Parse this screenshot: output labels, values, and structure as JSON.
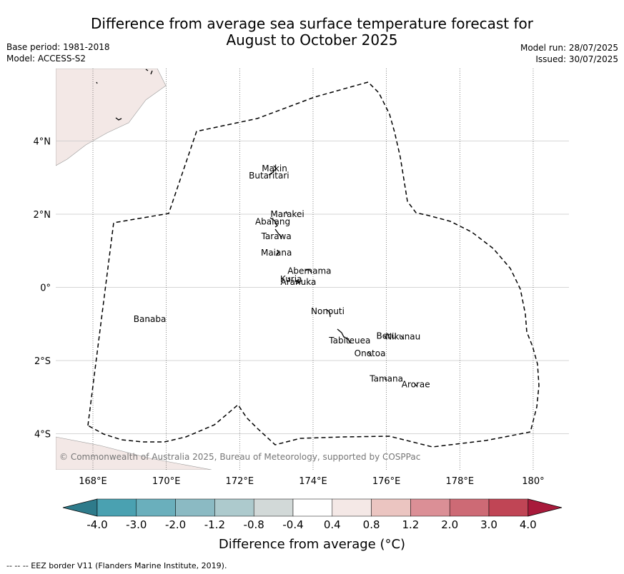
{
  "title_line1": "Difference from average sea surface temperature forecast for",
  "title_line2": "August to October 2025",
  "meta_left": [
    "Base period: 1981-2018",
    "Model: ACCESS-S2"
  ],
  "meta_right": [
    "Model run: 28/07/2025",
    "Issued: 30/07/2025"
  ],
  "lat_ticks": [
    {
      "label": "4°N",
      "lat": 4
    },
    {
      "label": "2°N",
      "lat": 2
    },
    {
      "label": "0°",
      "lat": 0
    },
    {
      "label": "2°S",
      "lat": -2
    },
    {
      "label": "4°S",
      "lat": -4
    }
  ],
  "lon_ticks": [
    {
      "label": "168°E",
      "lon": 168
    },
    {
      "label": "170°E",
      "lon": 170
    },
    {
      "label": "172°E",
      "lon": 172
    },
    {
      "label": "174°E",
      "lon": 174
    },
    {
      "label": "176°E",
      "lon": 176
    },
    {
      "label": "178°E",
      "lon": 178
    },
    {
      "label": "180°",
      "lon": 180
    }
  ],
  "islands": [
    {
      "name": "Makin",
      "lon": 172.95,
      "lat": 3.25
    },
    {
      "name": "Butaritari",
      "lon": 172.8,
      "lat": 3.05
    },
    {
      "name": "Marakei",
      "lon": 173.3,
      "lat": 2.0
    },
    {
      "name": "Abaiang",
      "lon": 172.9,
      "lat": 1.8
    },
    {
      "name": "Tarawa",
      "lon": 173.0,
      "lat": 1.4
    },
    {
      "name": "Maiana",
      "lon": 173.0,
      "lat": 0.95
    },
    {
      "name": "Abemama",
      "lon": 173.9,
      "lat": 0.45
    },
    {
      "name": "Kuria",
      "lon": 173.4,
      "lat": 0.22
    },
    {
      "name": "Aranuka",
      "lon": 173.6,
      "lat": 0.15
    },
    {
      "name": "Nonouti",
      "lon": 174.4,
      "lat": -0.65
    },
    {
      "name": "Banaba",
      "lon": 169.55,
      "lat": -0.87
    },
    {
      "name": "Beru",
      "lon": 176.0,
      "lat": -1.33
    },
    {
      "name": "Nikunau",
      "lon": 176.45,
      "lat": -1.35
    },
    {
      "name": "Tabiteuea",
      "lon": 175.0,
      "lat": -1.45
    },
    {
      "name": "Onotoa",
      "lon": 175.55,
      "lat": -1.8
    },
    {
      "name": "Tamana",
      "lon": 176.0,
      "lat": -2.5
    },
    {
      "name": "Arorae",
      "lon": 176.8,
      "lat": -2.65
    }
  ],
  "copyright": "© Commonwealth of Australia 2025, Bureau of Meteorology, supported by COSPPac",
  "colorbar": {
    "colors": [
      "#2e7b8b",
      "#4aa1b1",
      "#6aafbc",
      "#8bbac3",
      "#adcacd",
      "#d2d9d8",
      "#ffffff",
      "#f4e8e6",
      "#ebc5c1",
      "#db8f96",
      "#cd6a75",
      "#c04555",
      "#a81a3b"
    ],
    "tick_labels": [
      "-4.0",
      "-3.0",
      "-2.0",
      "-1.2",
      "-0.8",
      "-0.4",
      "0.4",
      "0.8",
      "1.2",
      "2.0",
      "3.0",
      "4.0"
    ],
    "label": "Difference from average (°C)"
  },
  "footnote": "--  --  -- EEZ border V11 (Flanders Marine Institute, 2019).",
  "land_color": "#f3e8e6"
}
